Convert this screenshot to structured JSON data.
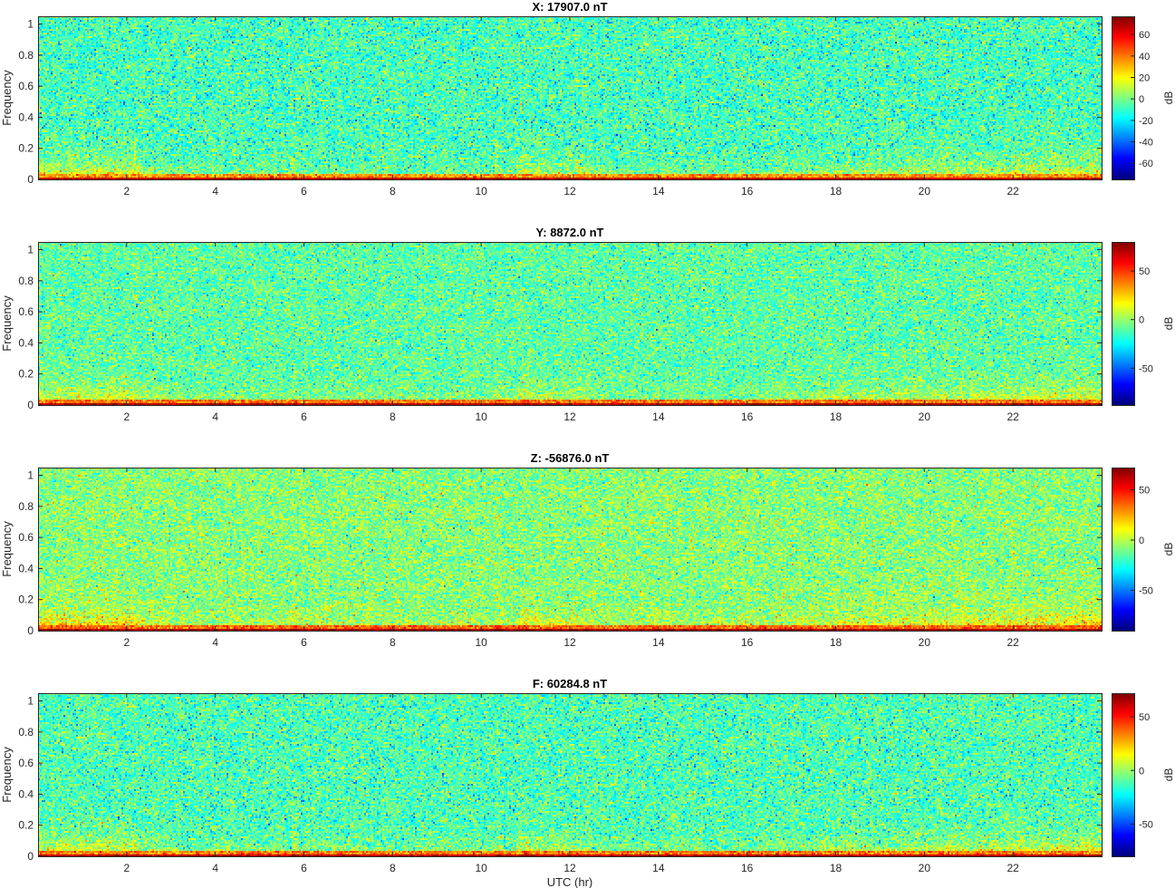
{
  "chart_data": [
    {
      "type": "heatmap",
      "title": "X: 17907.0 nT",
      "xlabel": "",
      "ylabel": "Frequency",
      "xlim": [
        0,
        24
      ],
      "ylim": [
        0,
        1.05
      ],
      "xticks": [
        2,
        4,
        6,
        8,
        10,
        12,
        14,
        16,
        18,
        20,
        22
      ],
      "yticks": [
        0,
        0.2,
        0.4,
        0.6,
        0.8,
        1
      ],
      "colorbar": {
        "label": "dB",
        "range": [
          -75,
          77
        ],
        "ticks": [
          -60,
          -40,
          -20,
          0,
          20,
          40,
          60
        ]
      },
      "colormap": "jet",
      "noise_floor_db": -8,
      "low_freq_band_db": 65
    },
    {
      "type": "heatmap",
      "title": "Y: 8872.0 nT",
      "xlabel": "",
      "ylabel": "Frequency",
      "xlim": [
        0,
        24
      ],
      "ylim": [
        0,
        1.05
      ],
      "xticks": [
        2,
        4,
        6,
        8,
        10,
        12,
        14,
        16,
        18,
        20,
        22
      ],
      "yticks": [
        0,
        0.2,
        0.4,
        0.6,
        0.8,
        1
      ],
      "colorbar": {
        "label": "dB",
        "range": [
          -88,
          80
        ],
        "ticks": [
          -50,
          0,
          50
        ]
      },
      "colormap": "jet",
      "noise_floor_db": -10,
      "low_freq_band_db": 70
    },
    {
      "type": "heatmap",
      "title": "Z: -56876.0 nT",
      "xlabel": "",
      "ylabel": "Frequency",
      "xlim": [
        0,
        24
      ],
      "ylim": [
        0,
        1.05
      ],
      "xticks": [
        2,
        4,
        6,
        8,
        10,
        12,
        14,
        16,
        18,
        20,
        22
      ],
      "yticks": [
        0,
        0.2,
        0.4,
        0.6,
        0.8,
        1
      ],
      "colorbar": {
        "label": "dB",
        "range": [
          -90,
          72
        ],
        "ticks": [
          -50,
          0,
          50
        ]
      },
      "colormap": "jet",
      "noise_floor_db": -8,
      "low_freq_band_db": 65
    },
    {
      "type": "heatmap",
      "title": "F: 60284.8 nT",
      "xlabel": "UTC (hr)",
      "ylabel": "Frequency",
      "xlim": [
        0,
        24
      ],
      "ylim": [
        0,
        1.05
      ],
      "xticks": [
        2,
        4,
        6,
        8,
        10,
        12,
        14,
        16,
        18,
        20,
        22
      ],
      "yticks": [
        0,
        0.2,
        0.4,
        0.6,
        0.8,
        1
      ],
      "colorbar": {
        "label": "dB",
        "range": [
          -80,
          72
        ],
        "ticks": [
          -50,
          0,
          50
        ]
      },
      "colormap": "jet",
      "noise_floor_db": -12,
      "low_freq_band_db": 62
    }
  ]
}
